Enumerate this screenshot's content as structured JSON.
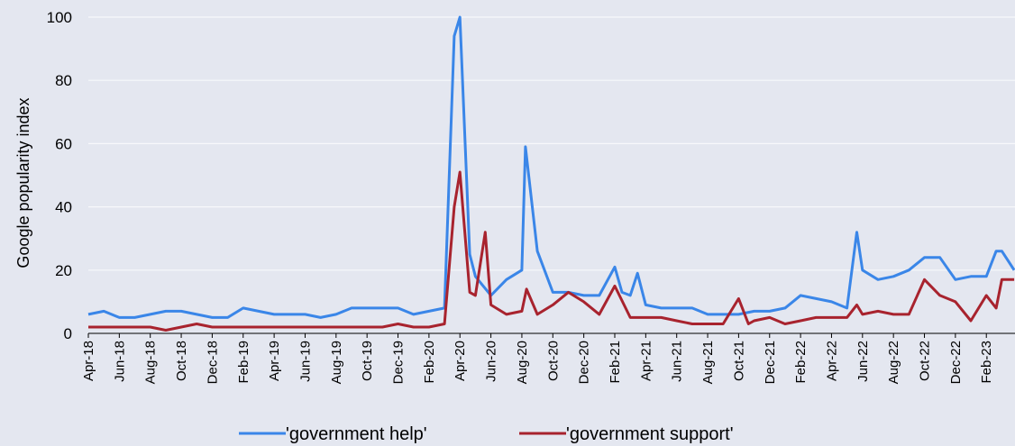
{
  "chart_data": {
    "type": "line",
    "ylabel": "Google popularity index",
    "xlabel": "",
    "ylim": [
      0,
      100
    ],
    "yticks": [
      0,
      20,
      40,
      60,
      80,
      100
    ],
    "grid": "horizontal",
    "legend_position": "bottom",
    "x_start": "2018-04",
    "x_end": "2023-03",
    "x_ticks": [
      "Apr-18",
      "Jun-18",
      "Aug-18",
      "Oct-18",
      "Dec-18",
      "Feb-19",
      "Apr-19",
      "Jun-19",
      "Aug-19",
      "Oct-19",
      "Dec-19",
      "Feb-20",
      "Apr-20",
      "Jun-20",
      "Aug-20",
      "Oct-20",
      "Dec-20",
      "Feb-21",
      "Apr-21",
      "Jun-21",
      "Aug-21",
      "Oct-21",
      "Dec-21",
      "Feb-22",
      "Apr-22",
      "Jun-22",
      "Aug-22",
      "Oct-22",
      "Dec-22",
      "Feb-23"
    ],
    "series": [
      {
        "name": "'government help'",
        "color": "#3a86e8",
        "points": [
          [
            "2018-04",
            6
          ],
          [
            "2018-05",
            7
          ],
          [
            "2018-06",
            5
          ],
          [
            "2018-07",
            5
          ],
          [
            "2018-08",
            6
          ],
          [
            "2018-09",
            7
          ],
          [
            "2018-10",
            7
          ],
          [
            "2018-11",
            6
          ],
          [
            "2018-12",
            5
          ],
          [
            "2019-01",
            5
          ],
          [
            "2019-02",
            8
          ],
          [
            "2019-03",
            7
          ],
          [
            "2019-04",
            6
          ],
          [
            "2019-05",
            6
          ],
          [
            "2019-06",
            6
          ],
          [
            "2019-07",
            5
          ],
          [
            "2019-08",
            6
          ],
          [
            "2019-09",
            8
          ],
          [
            "2019-10",
            8
          ],
          [
            "2019-11",
            8
          ],
          [
            "2019-12",
            8
          ],
          [
            "2020-01",
            6
          ],
          [
            "2020-02",
            7
          ],
          [
            "2020-03",
            8
          ],
          [
            "2020-03-20",
            94
          ],
          [
            "2020-04",
            100
          ],
          [
            "2020-04-20",
            25
          ],
          [
            "2020-05",
            18
          ],
          [
            "2020-06",
            12
          ],
          [
            "2020-07",
            17
          ],
          [
            "2020-08",
            20
          ],
          [
            "2020-08-08",
            59
          ],
          [
            "2020-09",
            26
          ],
          [
            "2020-10",
            13
          ],
          [
            "2020-11",
            13
          ],
          [
            "2020-12",
            12
          ],
          [
            "2021-01",
            12
          ],
          [
            "2021-02",
            21
          ],
          [
            "2021-02-15",
            13
          ],
          [
            "2021-03",
            12
          ],
          [
            "2021-03-15",
            19
          ],
          [
            "2021-04",
            9
          ],
          [
            "2021-05",
            8
          ],
          [
            "2021-06",
            8
          ],
          [
            "2021-07",
            8
          ],
          [
            "2021-08",
            6
          ],
          [
            "2021-09",
            6
          ],
          [
            "2021-10",
            6
          ],
          [
            "2021-11",
            7
          ],
          [
            "2021-12",
            7
          ],
          [
            "2022-01",
            8
          ],
          [
            "2022-02",
            12
          ],
          [
            "2022-03",
            11
          ],
          [
            "2022-04",
            10
          ],
          [
            "2022-05",
            8
          ],
          [
            "2022-05-20",
            32
          ],
          [
            "2022-06",
            20
          ],
          [
            "2022-07",
            17
          ],
          [
            "2022-08",
            18
          ],
          [
            "2022-09",
            20
          ],
          [
            "2022-10",
            24
          ],
          [
            "2022-11",
            24
          ],
          [
            "2022-12",
            17
          ],
          [
            "2023-01",
            18
          ],
          [
            "2023-02",
            18
          ],
          [
            "2023-02-20",
            26
          ],
          [
            "2023-03",
            26
          ],
          [
            "2023-03-25",
            20
          ]
        ]
      },
      {
        "name": "'government support'",
        "color": "#a8232e",
        "points": [
          [
            "2018-04",
            2
          ],
          [
            "2018-05",
            2
          ],
          [
            "2018-06",
            2
          ],
          [
            "2018-07",
            2
          ],
          [
            "2018-08",
            2
          ],
          [
            "2018-09",
            1
          ],
          [
            "2018-10",
            2
          ],
          [
            "2018-11",
            3
          ],
          [
            "2018-12",
            2
          ],
          [
            "2019-01",
            2
          ],
          [
            "2019-02",
            2
          ],
          [
            "2019-03",
            2
          ],
          [
            "2019-04",
            2
          ],
          [
            "2019-05",
            2
          ],
          [
            "2019-06",
            2
          ],
          [
            "2019-07",
            2
          ],
          [
            "2019-08",
            2
          ],
          [
            "2019-09",
            2
          ],
          [
            "2019-10",
            2
          ],
          [
            "2019-11",
            2
          ],
          [
            "2019-12",
            3
          ],
          [
            "2020-01",
            2
          ],
          [
            "2020-02",
            2
          ],
          [
            "2020-03",
            3
          ],
          [
            "2020-03-20",
            40
          ],
          [
            "2020-04",
            51
          ],
          [
            "2020-04-20",
            13
          ],
          [
            "2020-05",
            12
          ],
          [
            "2020-05-20",
            32
          ],
          [
            "2020-06",
            9
          ],
          [
            "2020-07",
            6
          ],
          [
            "2020-08",
            7
          ],
          [
            "2020-08-10",
            14
          ],
          [
            "2020-09",
            6
          ],
          [
            "2020-10",
            9
          ],
          [
            "2020-11",
            13
          ],
          [
            "2020-12",
            10
          ],
          [
            "2021-01",
            6
          ],
          [
            "2021-02",
            15
          ],
          [
            "2021-03",
            5
          ],
          [
            "2021-04",
            5
          ],
          [
            "2021-05",
            5
          ],
          [
            "2021-06",
            4
          ],
          [
            "2021-07",
            3
          ],
          [
            "2021-08",
            3
          ],
          [
            "2021-09",
            3
          ],
          [
            "2021-10",
            11
          ],
          [
            "2021-10-20",
            3
          ],
          [
            "2021-11",
            4
          ],
          [
            "2021-12",
            5
          ],
          [
            "2022-01",
            3
          ],
          [
            "2022-02",
            4
          ],
          [
            "2022-03",
            5
          ],
          [
            "2022-04",
            5
          ],
          [
            "2022-05",
            5
          ],
          [
            "2022-05-20",
            9
          ],
          [
            "2022-06",
            6
          ],
          [
            "2022-07",
            7
          ],
          [
            "2022-08",
            6
          ],
          [
            "2022-09",
            6
          ],
          [
            "2022-10",
            17
          ],
          [
            "2022-11",
            12
          ],
          [
            "2022-12",
            10
          ],
          [
            "2023-01",
            4
          ],
          [
            "2023-02",
            12
          ],
          [
            "2023-02-20",
            8
          ],
          [
            "2023-03",
            17
          ],
          [
            "2023-03-25",
            17
          ]
        ]
      }
    ]
  }
}
